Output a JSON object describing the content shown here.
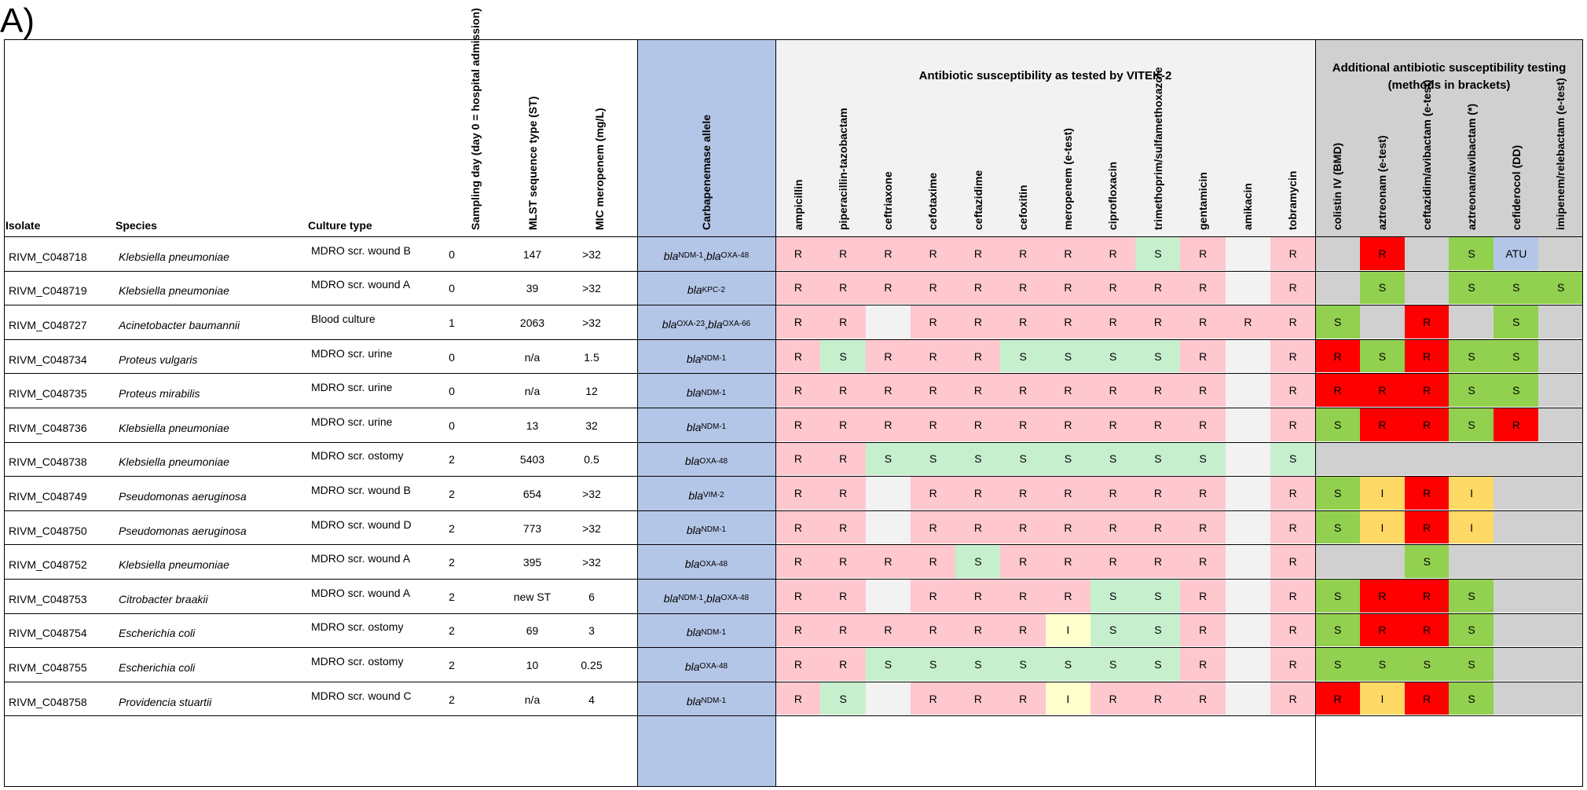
{
  "panel_label": "A)",
  "headers": {
    "isolate": "Isolate",
    "species": "Species",
    "culture": "Culture type",
    "day": "Sampling day (day 0 = hospital admission)",
    "st": "MLST sequence type (ST)",
    "mic": "MIC meropenem (mg/L)",
    "allele": "Carbapenemase allele",
    "vitek_title": "Antibiotic susceptibility as tested by VITEK-2",
    "addl_title_1": "Additional antibiotic susceptibility testing",
    "addl_title_2": "(methods in brackets)"
  },
  "vitek_antibiotics": [
    "ampicillin",
    "piperacillin-tazobactam",
    "ceftriaxone",
    "cefotaxime",
    "ceftazidime",
    "cefoxitin",
    "meropenem (e-test)",
    "ciprofloxacin",
    "trimethoprim/sulfamethoxazole",
    "gentamicin",
    "amikacin",
    "tobramycin"
  ],
  "addl_antibiotics": [
    "colistin IV (BMD)",
    "aztreonam (e-test)",
    "ceftazidim/avibactam (e-test)",
    "aztreonam/avibactam (*)",
    "cefiderocol (DD)",
    "imipenem/relebactam (e-test)"
  ],
  "colors": {
    "R_light": "#ffc7ce",
    "S_light": "#c6efce",
    "I_light": "#ffffcc",
    "empty_light": "#f2f2f2",
    "R_strong": "#ff0000",
    "S_strong": "#92d050",
    "I_strong": "#ffd966",
    "ATU": "#b4c6e7",
    "empty_strong": "#d0d0d0",
    "allele_bg": "#b4c6e7",
    "vitek_header_bg": "#f2f2f2",
    "addl_header_bg": "#d0d0d0"
  },
  "rows": [
    {
      "isolate": "RIVM_C048718",
      "species": "Klebsiella pneumoniae",
      "culture": "MDRO scr. wound B",
      "day": "0",
      "st": "147",
      "mic": ">32",
      "alleles": [
        "NDM-1",
        "OXA-48"
      ],
      "vitek": [
        "R",
        "R",
        "R",
        "R",
        "R",
        "R",
        "R",
        "R",
        "S",
        "R",
        "",
        "R"
      ],
      "addl": [
        "",
        "R",
        "",
        "S",
        "ATU",
        ""
      ]
    },
    {
      "isolate": "RIVM_C048719",
      "species": "Klebsiella pneumoniae",
      "culture": "MDRO scr. wound A",
      "day": "0",
      "st": "39",
      "mic": ">32",
      "alleles": [
        "KPC-2"
      ],
      "vitek": [
        "R",
        "R",
        "R",
        "R",
        "R",
        "R",
        "R",
        "R",
        "R",
        "R",
        "",
        "R"
      ],
      "addl": [
        "",
        "S",
        "",
        "S",
        "S",
        "S"
      ]
    },
    {
      "isolate": "RIVM_C048727",
      "species": "Acinetobacter baumannii",
      "culture": "Blood culture",
      "day": "1",
      "st": "2063",
      "mic": ">32",
      "alleles": [
        "OXA-23",
        "OXA-66"
      ],
      "vitek": [
        "R",
        "R",
        "",
        "R",
        "R",
        "R",
        "R",
        "R",
        "R",
        "R",
        "R",
        "R"
      ],
      "addl": [
        "S",
        "",
        "R",
        "",
        "S",
        ""
      ]
    },
    {
      "isolate": "RIVM_C048734",
      "species": "Proteus vulgaris",
      "culture": "MDRO scr. urine",
      "day": "0",
      "st": "n/a",
      "mic": "1.5",
      "alleles": [
        "NDM-1"
      ],
      "vitek": [
        "R",
        "S",
        "R",
        "R",
        "R",
        "S",
        "S",
        "S",
        "S",
        "R",
        "",
        "R"
      ],
      "addl": [
        "R",
        "S",
        "R",
        "S",
        "S",
        ""
      ]
    },
    {
      "isolate": "RIVM_C048735",
      "species": "Proteus mirabilis",
      "culture": "MDRO scr. urine",
      "day": "0",
      "st": "n/a",
      "mic": "12",
      "alleles": [
        "NDM-1"
      ],
      "vitek": [
        "R",
        "R",
        "R",
        "R",
        "R",
        "R",
        "R",
        "R",
        "R",
        "R",
        "",
        "R"
      ],
      "addl": [
        "R",
        "R",
        "R",
        "S",
        "S",
        ""
      ]
    },
    {
      "isolate": "RIVM_C048736",
      "species": "Klebsiella pneumoniae",
      "culture": "MDRO scr. urine",
      "day": "0",
      "st": "13",
      "mic": "32",
      "alleles": [
        "NDM-1"
      ],
      "vitek": [
        "R",
        "R",
        "R",
        "R",
        "R",
        "R",
        "R",
        "R",
        "R",
        "R",
        "",
        "R"
      ],
      "addl": [
        "S",
        "R",
        "R",
        "S",
        "R",
        ""
      ]
    },
    {
      "isolate": "RIVM_C048738",
      "species": "Klebsiella pneumoniae",
      "culture": "MDRO scr. ostomy",
      "day": "2",
      "st": "5403",
      "mic": "0.5",
      "alleles": [
        "OXA-48"
      ],
      "vitek": [
        "R",
        "R",
        "S",
        "S",
        "S",
        "S",
        "S",
        "S",
        "S",
        "S",
        "",
        "S"
      ],
      "addl": [
        "",
        "",
        "",
        "",
        "",
        ""
      ]
    },
    {
      "isolate": "RIVM_C048749",
      "species": "Pseudomonas aeruginosa",
      "culture": "MDRO scr. wound B",
      "day": "2",
      "st": "654",
      "mic": ">32",
      "alleles": [
        "VIM-2"
      ],
      "vitek": [
        "R",
        "R",
        "",
        "R",
        "R",
        "R",
        "R",
        "R",
        "R",
        "R",
        "",
        "R"
      ],
      "addl": [
        "S",
        "I",
        "R",
        "I",
        "",
        ""
      ]
    },
    {
      "isolate": "RIVM_C048750",
      "species": "Pseudomonas aeruginosa",
      "culture": "MDRO scr. wound D",
      "day": "2",
      "st": "773",
      "mic": ">32",
      "alleles": [
        "NDM-1"
      ],
      "vitek": [
        "R",
        "R",
        "",
        "R",
        "R",
        "R",
        "R",
        "R",
        "R",
        "R",
        "",
        "R"
      ],
      "addl": [
        "S",
        "I",
        "R",
        "I",
        "",
        ""
      ]
    },
    {
      "isolate": "RIVM_C048752",
      "species": "Klebsiella pneumoniae",
      "culture": "MDRO scr. wound A",
      "day": "2",
      "st": "395",
      "mic": ">32",
      "alleles": [
        "OXA-48"
      ],
      "vitek": [
        "R",
        "R",
        "R",
        "R",
        "S",
        "R",
        "R",
        "R",
        "R",
        "R",
        "",
        "R"
      ],
      "addl": [
        "",
        "",
        "S",
        "",
        "",
        ""
      ]
    },
    {
      "isolate": "RIVM_C048753",
      "species": "Citrobacter braakii",
      "culture": "MDRO scr. wound A",
      "day": "2",
      "st": "new ST",
      "mic": "6",
      "alleles": [
        "NDM-1",
        "OXA-48"
      ],
      "vitek": [
        "R",
        "R",
        "",
        "R",
        "R",
        "R",
        "R",
        "S",
        "S",
        "R",
        "",
        "R"
      ],
      "addl": [
        "S",
        "R",
        "R",
        "S",
        "",
        ""
      ]
    },
    {
      "isolate": "RIVM_C048754",
      "species": "Escherichia coli",
      "culture": "MDRO scr. ostomy",
      "day": "2",
      "st": "69",
      "mic": "3",
      "alleles": [
        "NDM-1"
      ],
      "vitek": [
        "R",
        "R",
        "R",
        "R",
        "R",
        "R",
        "I",
        "S",
        "S",
        "R",
        "",
        "R"
      ],
      "addl": [
        "S",
        "R",
        "R",
        "S",
        "",
        ""
      ]
    },
    {
      "isolate": "RIVM_C048755",
      "species": "Escherichia coli",
      "culture": "MDRO scr. ostomy",
      "day": "2",
      "st": "10",
      "mic": "0.25",
      "alleles": [
        "OXA-48"
      ],
      "vitek": [
        "R",
        "R",
        "S",
        "S",
        "S",
        "S",
        "S",
        "S",
        "S",
        "R",
        "",
        "R"
      ],
      "addl": [
        "S",
        "S",
        "S",
        "S",
        "",
        ""
      ]
    },
    {
      "isolate": "RIVM_C048758",
      "species": "Providencia stuartii",
      "culture": "MDRO scr. wound C",
      "day": "2",
      "st": "n/a",
      "mic": "4",
      "alleles": [
        "NDM-1"
      ],
      "vitek": [
        "R",
        "S",
        "",
        "R",
        "R",
        "R",
        "I",
        "R",
        "R",
        "R",
        "",
        "R"
      ],
      "addl": [
        "R",
        "I",
        "R",
        "S",
        "",
        ""
      ]
    }
  ]
}
